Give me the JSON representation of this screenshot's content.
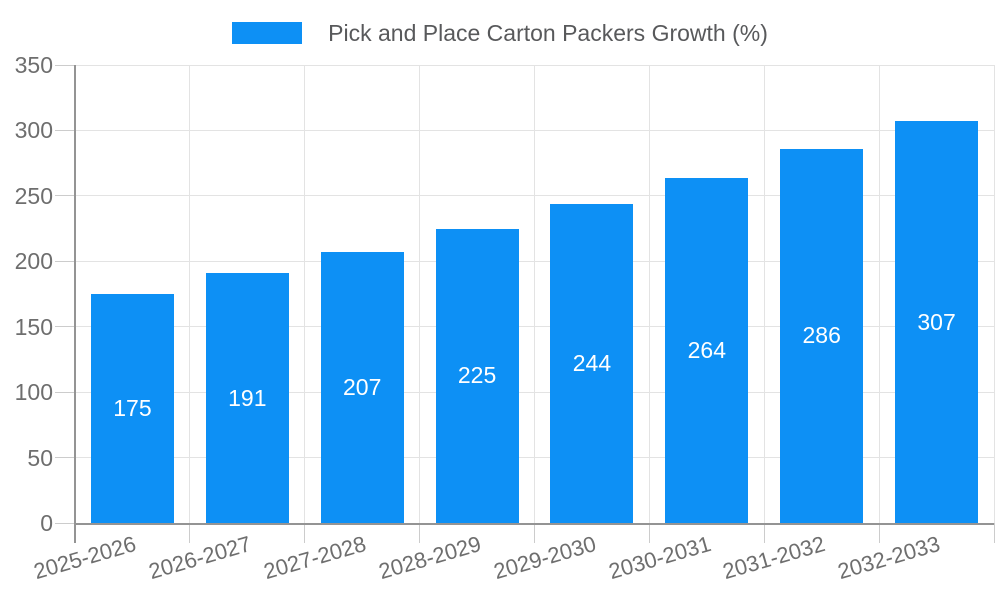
{
  "chart_data": {
    "type": "bar",
    "title": "Pick and Place Carton Packers Growth (%)",
    "legend": {
      "position": "top",
      "entries": [
        "Pick and Place Carton Packers Growth (%)"
      ]
    },
    "categories": [
      "2025-2026",
      "2026-2027",
      "2027-2028",
      "2028-2029",
      "2029-2030",
      "2030-2031",
      "2031-2032",
      "2032-2033"
    ],
    "series": [
      {
        "name": "Pick and Place Carton Packers Growth (%)",
        "values": [
          175,
          191,
          207,
          225,
          244,
          264,
          286,
          307
        ]
      }
    ],
    "value_labels_shown": true,
    "value_label_position": "inside-center",
    "xlabel": "",
    "ylabel": "",
    "ylim": [
      0,
      350
    ],
    "yticks": [
      0,
      50,
      100,
      150,
      200,
      250,
      300,
      350
    ],
    "grid": true,
    "x_label_rotation_deg": -16,
    "colors": {
      "bar": "#0D90F5",
      "value_label": "#FFFFFF",
      "axis_labels": "#6E6E6E",
      "title": "#58595B",
      "gridline": "#E3E3E3",
      "tick": "#CCCCCC",
      "axis_line": "#949494",
      "background": "#FFFFFF"
    }
  }
}
